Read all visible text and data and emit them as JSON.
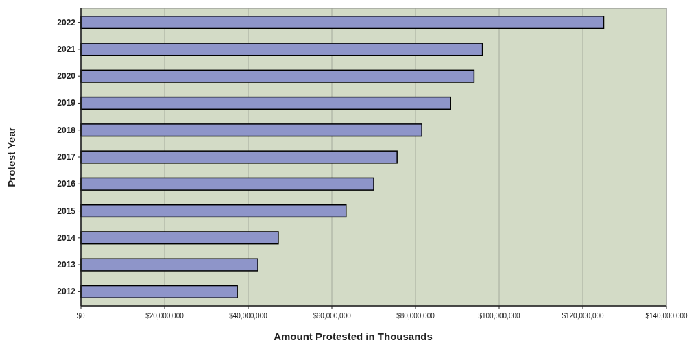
{
  "chart_data": {
    "type": "bar",
    "orientation": "horizontal",
    "xlabel": "Amount Protested in Thousands",
    "ylabel": "Protest Year",
    "categories": [
      "2022",
      "2021",
      "2020",
      "2019",
      "2018",
      "2017",
      "2016",
      "2015",
      "2014",
      "2013",
      "2012"
    ],
    "values": [
      125000000,
      96000000,
      94000000,
      88400000,
      81500000,
      75600000,
      70000000,
      63400000,
      47200000,
      42300000,
      37400000
    ],
    "color": "#8e95c9",
    "xlim": [
      0,
      140000000
    ],
    "xticks": [
      {
        "value": 0,
        "label": "$0"
      },
      {
        "value": 20000000,
        "label": "$20,000,000"
      },
      {
        "value": 40000000,
        "label": "$40,000,000"
      },
      {
        "value": 60000000,
        "label": "$60,000,000"
      },
      {
        "value": 80000000,
        "label": "$80,000,000"
      },
      {
        "value": 100000000,
        "label": "$100,000,000"
      },
      {
        "value": 120000000,
        "label": "$120,000,000"
      },
      {
        "value": 140000000,
        "label": "$140,000,000"
      }
    ],
    "grid": "x"
  }
}
